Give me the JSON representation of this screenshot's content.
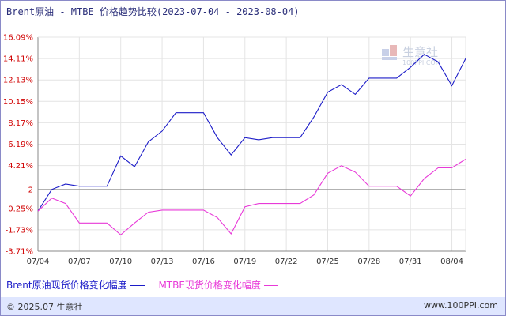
{
  "header": {
    "title": "Brent原油 - MTBE 价格趋势比较(2023-07-04 - 2023-08-04)"
  },
  "watermark": {
    "brand": "生意社",
    "url": "100PPI.COM"
  },
  "legend": {
    "items": [
      {
        "label": "Brent原油现货价格变化幅度",
        "color": "#1c1cc8"
      },
      {
        "label": "MTBE现货价格变化幅度",
        "color": "#e83ad8"
      }
    ]
  },
  "footer": {
    "left": "© 2025.07 生意社",
    "right": "www.100PPI.com"
  },
  "chart_data": {
    "type": "line",
    "title": "Brent原油 - MTBE 价格趋势比较(2023-07-04 - 2023-08-04)",
    "xlabel": "",
    "ylabel": "",
    "ylim": [
      -3.71,
      16.09
    ],
    "y_ticks": [
      "16.09%",
      "14.11%",
      "12.13%",
      "10.15%",
      "8.17%",
      "6.19%",
      "4.21%",
      "2",
      "0.25%",
      "-1.73%",
      "-3.71%"
    ],
    "y_tick_values": [
      16.09,
      14.11,
      12.13,
      10.15,
      8.17,
      6.19,
      4.21,
      2.0,
      0.25,
      -1.73,
      -3.71
    ],
    "x_tick_labels": [
      "07/04",
      "07/07",
      "07/10",
      "07/13",
      "07/16",
      "07/19",
      "07/22",
      "07/25",
      "07/28",
      "07/31",
      "08/04"
    ],
    "x_tick_index": [
      0,
      3,
      6,
      9,
      12,
      15,
      18,
      21,
      24,
      27,
      30
    ],
    "reference_line": 2.0,
    "grid": true,
    "series": [
      {
        "name": "Brent原油现货价格变化幅度",
        "color": "#1c1cc8",
        "values": [
          0.0,
          2.0,
          2.5,
          2.3,
          2.3,
          2.3,
          5.1,
          4.1,
          6.4,
          7.4,
          9.1,
          9.1,
          9.1,
          6.8,
          5.2,
          6.8,
          6.6,
          6.8,
          6.8,
          6.8,
          8.7,
          11.0,
          11.7,
          10.8,
          12.3,
          12.3,
          12.3,
          13.3,
          14.5,
          13.8,
          11.6,
          14.11
        ]
      },
      {
        "name": "MTBE现货价格变化幅度",
        "color": "#e83ad8",
        "values": [
          0.0,
          1.2,
          0.7,
          -1.1,
          -1.1,
          -1.1,
          -2.2,
          -1.1,
          -0.1,
          0.1,
          0.1,
          0.1,
          0.1,
          -0.6,
          -2.1,
          0.4,
          0.7,
          0.7,
          0.7,
          0.7,
          1.5,
          3.5,
          4.2,
          3.6,
          2.3,
          2.3,
          2.3,
          1.4,
          3.0,
          4.0,
          4.0,
          4.8
        ]
      }
    ]
  }
}
